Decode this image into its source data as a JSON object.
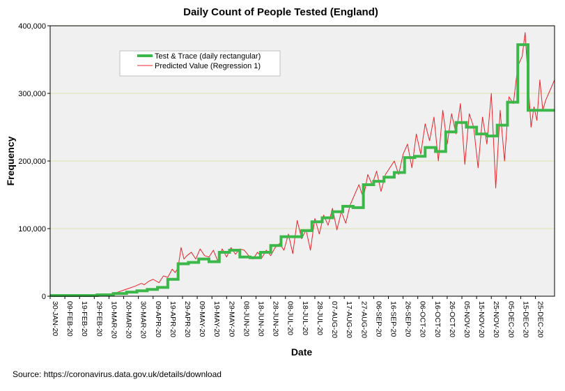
{
  "chart_data": {
    "type": "line",
    "title": "Daily Count of People Tested (England)",
    "xlabel": "Date",
    "ylabel": "Frequency",
    "ylim": [
      0,
      400000
    ],
    "yticks": [
      {
        "value": 0,
        "label": "0"
      },
      {
        "value": 100000,
        "label": "100,000"
      },
      {
        "value": 200000,
        "label": "200,000"
      },
      {
        "value": 300000,
        "label": "300,000"
      },
      {
        "value": 400000,
        "label": "400,000"
      }
    ],
    "x_range_days": [
      0,
      343
    ],
    "x_ticks": [
      {
        "day": 0,
        "label": "30-JAN-20"
      },
      {
        "day": 10,
        "label": "09-FEB-20"
      },
      {
        "day": 20,
        "label": "19-FEB-20"
      },
      {
        "day": 30,
        "label": "29-FEB-20"
      },
      {
        "day": 40,
        "label": "10-MAR-20"
      },
      {
        "day": 50,
        "label": "20-MAR-20"
      },
      {
        "day": 60,
        "label": "30-MAR-20"
      },
      {
        "day": 70,
        "label": "09-APR-20"
      },
      {
        "day": 80,
        "label": "19-APR-20"
      },
      {
        "day": 90,
        "label": "29-APR-20"
      },
      {
        "day": 100,
        "label": "09-MAY-20"
      },
      {
        "day": 110,
        "label": "19-MAY-20"
      },
      {
        "day": 120,
        "label": "29-MAY-20"
      },
      {
        "day": 130,
        "label": "08-JUN-20"
      },
      {
        "day": 140,
        "label": "18-JUN-20"
      },
      {
        "day": 150,
        "label": "28-JUN-20"
      },
      {
        "day": 160,
        "label": "08-JUL-20"
      },
      {
        "day": 170,
        "label": "18-JUL-20"
      },
      {
        "day": 180,
        "label": "28-JUL-20"
      },
      {
        "day": 190,
        "label": "07-AUG-20"
      },
      {
        "day": 200,
        "label": "17-AUG-20"
      },
      {
        "day": 210,
        "label": "27-AUG-20"
      },
      {
        "day": 220,
        "label": "06-SEP-20"
      },
      {
        "day": 230,
        "label": "16-SEP-20"
      },
      {
        "day": 240,
        "label": "26-SEP-20"
      },
      {
        "day": 250,
        "label": "06-OCT-20"
      },
      {
        "day": 260,
        "label": "16-OCT-20"
      },
      {
        "day": 270,
        "label": "26-OCT-20"
      },
      {
        "day": 280,
        "label": "05-NOV-20"
      },
      {
        "day": 290,
        "label": "15-NOV-20"
      },
      {
        "day": 300,
        "label": "25-NOV-20"
      },
      {
        "day": 310,
        "label": "05-DEC-20"
      },
      {
        "day": 320,
        "label": "15-DEC-20"
      },
      {
        "day": 330,
        "label": "25-DEC-20"
      }
    ],
    "grid": true,
    "legend_position": "top-left",
    "series": [
      {
        "name": "Test & Trace (daily rectangular)",
        "color": "#3cb84a",
        "style": "step",
        "x": [
          0,
          32,
          43,
          52,
          59,
          66,
          73,
          80,
          87,
          94,
          101,
          108,
          115,
          122,
          129,
          136,
          143,
          150,
          157,
          164,
          171,
          178,
          185,
          192,
          199,
          206,
          213,
          220,
          227,
          234,
          241,
          248,
          255,
          262,
          269,
          276,
          283,
          290,
          297,
          304,
          311,
          318,
          325,
          330,
          336
        ],
        "values": [
          1000,
          2000,
          4000,
          6000,
          8000,
          10000,
          13000,
          25000,
          48000,
          50000,
          55000,
          51000,
          65000,
          68000,
          58000,
          57000,
          65000,
          75000,
          88000,
          88000,
          97000,
          110000,
          116000,
          125000,
          133000,
          131000,
          165000,
          170000,
          176000,
          183000,
          205000,
          207000,
          220000,
          214000,
          243000,
          257000,
          250000,
          240000,
          237000,
          253000,
          287000,
          372000,
          275000,
          275000,
          275000
        ]
      },
      {
        "name": "Predicted Value (Regression 1)",
        "color": "#e8242a",
        "style": "line",
        "x": [
          0,
          30,
          40,
          46,
          50,
          54,
          58,
          62,
          64,
          67,
          70,
          74,
          77,
          80,
          83,
          85,
          87,
          89,
          91,
          93,
          96,
          99,
          102,
          105,
          108,
          111,
          114,
          117,
          120,
          123,
          126,
          129,
          132,
          135,
          138,
          141,
          144,
          147,
          150,
          153,
          156,
          159,
          162,
          165,
          168,
          171,
          174,
          177,
          180,
          183,
          186,
          189,
          192,
          195,
          198,
          201,
          204,
          207,
          210,
          213,
          216,
          219,
          222,
          225,
          228,
          231,
          234,
          237,
          240,
          243,
          246,
          249,
          252,
          255,
          258,
          261,
          264,
          267,
          270,
          273,
          276,
          279,
          282,
          285,
          288,
          291,
          294,
          297,
          300,
          303,
          306,
          309,
          312,
          315,
          318,
          321,
          323,
          325,
          327,
          329,
          331,
          333,
          335,
          337,
          339,
          341,
          343
        ],
        "values": [
          0,
          500,
          3000,
          6000,
          9000,
          12000,
          15000,
          19000,
          17000,
          22000,
          25000,
          20000,
          30000,
          28000,
          40000,
          35000,
          42000,
          72000,
          55000,
          60000,
          65000,
          55000,
          70000,
          60000,
          58000,
          68000,
          52000,
          70000,
          58000,
          72000,
          62000,
          70000,
          68000,
          60000,
          55000,
          65000,
          57000,
          68000,
          60000,
          72000,
          78000,
          68000,
          92000,
          63000,
          112000,
          85000,
          98000,
          68000,
          115000,
          92000,
          120000,
          105000,
          130000,
          98000,
          125000,
          108000,
          135000,
          150000,
          165000,
          145000,
          180000,
          165000,
          185000,
          155000,
          180000,
          190000,
          200000,
          180000,
          210000,
          225000,
          190000,
          240000,
          210000,
          255000,
          230000,
          265000,
          200000,
          275000,
          225000,
          270000,
          240000,
          285000,
          195000,
          270000,
          250000,
          190000,
          265000,
          225000,
          300000,
          160000,
          275000,
          200000,
          295000,
          285000,
          340000,
          355000,
          390000,
          320000,
          250000,
          280000,
          260000,
          320000,
          275000,
          290000,
          300000,
          310000,
          320000
        ]
      }
    ]
  },
  "source_text": "Source: https://coronavirus.data.gov.uk/details/download"
}
